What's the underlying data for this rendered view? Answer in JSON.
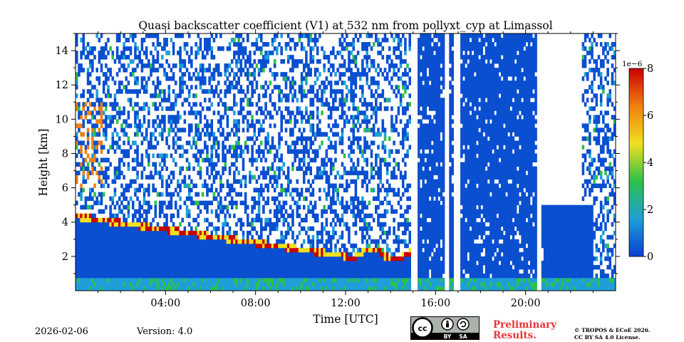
{
  "chart_data": {
    "type": "heatmap",
    "title": "Quasi backscatter coefficient (V1) at 532 nm from pollyxt_cyp at Limassol",
    "xlabel": "Time [UTC]",
    "ylabel": "Height [km]",
    "xlim": [
      0,
      24
    ],
    "ylim": [
      0,
      15
    ],
    "x_ticks": [
      {
        "value": 4,
        "label": "04:00"
      },
      {
        "value": 8,
        "label": "08:00"
      },
      {
        "value": 12,
        "label": "12:00"
      },
      {
        "value": 16,
        "label": "16:00"
      },
      {
        "value": 20,
        "label": "20:00"
      }
    ],
    "y_ticks": [
      {
        "value": 2,
        "label": "2"
      },
      {
        "value": 4,
        "label": "4"
      },
      {
        "value": 6,
        "label": "6"
      },
      {
        "value": 8,
        "label": "8"
      },
      {
        "value": 10,
        "label": "10"
      },
      {
        "value": 12,
        "label": "12"
      },
      {
        "value": 14,
        "label": "14"
      }
    ],
    "colorbar": {
      "scale_label": "1e−6",
      "range": [
        0,
        8
      ],
      "ticks": [
        "0",
        "2",
        "4",
        "6",
        "8"
      ]
    },
    "features": [
      {
        "name": "boundary-layer",
        "height_top_km_start": 4.5,
        "height_top_km_end": 2.2,
        "time_range": [
          0,
          12
        ]
      },
      {
        "name": "aerosol-layer-evening",
        "height_top_km": 5.0,
        "time_range": [
          20.8,
          23
        ]
      },
      {
        "name": "data-gap",
        "time_range": [
          14.85,
          15.2
        ]
      },
      {
        "name": "data-gap",
        "time_range": [
          16.35,
          16.55
        ]
      },
      {
        "name": "data-gap",
        "time_range": [
          16.8,
          17.1
        ]
      },
      {
        "name": "data-gap",
        "time_range": [
          20.5,
          20.75
        ]
      }
    ]
  },
  "footer": {
    "date": "2026-02-06",
    "version": "Version: 4.0",
    "license_badge": {
      "cc": "cc",
      "by": "BY",
      "sa": "SA"
    },
    "preliminary_line1": "Preliminary",
    "preliminary_line2": "Results.",
    "copyright_line1": "© TROPOS & ECoE 2026.",
    "copyright_line2": "CC BY SA 4.0 License."
  },
  "colors": {
    "background_blue": "#0a4fd0",
    "colormap": [
      "#0a3fd0",
      "#1e9fd8",
      "#2ec04a",
      "#f0e020",
      "#f08010",
      "#c80000"
    ]
  }
}
